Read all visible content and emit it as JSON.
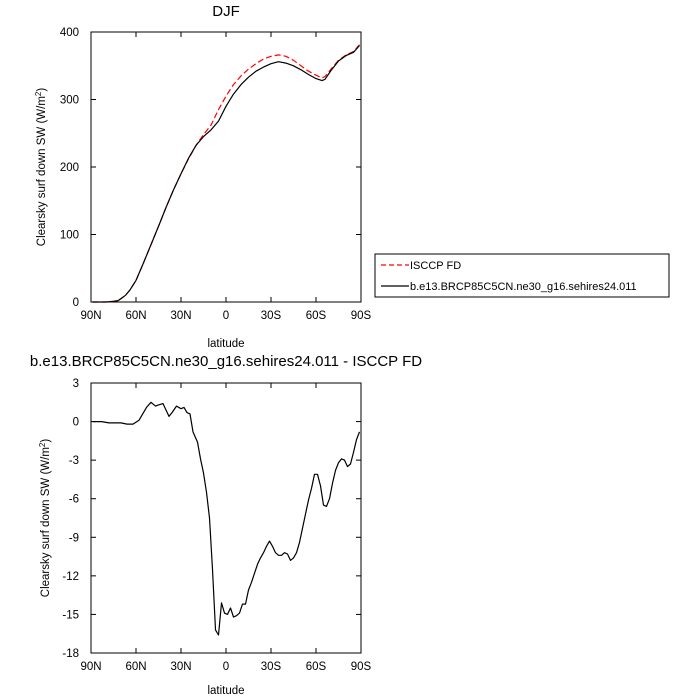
{
  "chart_data": [
    {
      "type": "line",
      "title": "DJF",
      "xlabel": "latitude",
      "ylabel": "Clearsky surf down SW (W/m",
      "ylabel_sup": "2",
      "ylabel_close": ")",
      "xlim": [
        90,
        -90
      ],
      "ylim": [
        0,
        400
      ],
      "x_ticks": [
        {
          "value": 90,
          "label": "90N"
        },
        {
          "value": 60,
          "label": "60N"
        },
        {
          "value": 30,
          "label": "30N"
        },
        {
          "value": 0,
          "label": "0"
        },
        {
          "value": -30,
          "label": "30S"
        },
        {
          "value": -60,
          "label": "60S"
        },
        {
          "value": -90,
          "label": "90S"
        }
      ],
      "y_ticks": [
        {
          "value": 0,
          "label": "0"
        },
        {
          "value": 100,
          "label": "100"
        },
        {
          "value": 200,
          "label": "200"
        },
        {
          "value": 300,
          "label": "300"
        },
        {
          "value": 400,
          "label": "400"
        }
      ],
      "legend": "right",
      "series": [
        {
          "name": "ISCCP FD",
          "color": "#ff0000",
          "dash": "dashed",
          "x": [
            89,
            80,
            75,
            72,
            70,
            67,
            64,
            60,
            55,
            50,
            45,
            40,
            35,
            30,
            25,
            20,
            15,
            10,
            5,
            0,
            -5,
            -10,
            -15,
            -20,
            -25,
            -30,
            -35,
            -40,
            -45,
            -50,
            -55,
            -60,
            -64,
            -66,
            -70,
            -75,
            -80,
            -85,
            -89
          ],
          "y": [
            0,
            0,
            1,
            2,
            5,
            10,
            18,
            32,
            58,
            85,
            112,
            140,
            166,
            190,
            212,
            232,
            248,
            262,
            285,
            305,
            322,
            335,
            345,
            353,
            360,
            364,
            366,
            364,
            358,
            350,
            342,
            336,
            332,
            334,
            345,
            358,
            366,
            371,
            381
          ]
        },
        {
          "name": "b.e13.BRCP85C5CN.ne30_g16.sehires24.011",
          "color": "#000000",
          "dash": "solid",
          "x": [
            89,
            80,
            75,
            72,
            70,
            67,
            64,
            60,
            55,
            50,
            45,
            40,
            35,
            30,
            25,
            20,
            15,
            10,
            5,
            0,
            -5,
            -10,
            -15,
            -20,
            -25,
            -30,
            -35,
            -40,
            -45,
            -50,
            -55,
            -60,
            -64,
            -66,
            -70,
            -75,
            -80,
            -85,
            -89
          ],
          "y": [
            0,
            0,
            1,
            2,
            5,
            10,
            18,
            32,
            58,
            85,
            112,
            140,
            166,
            190,
            213,
            232,
            245,
            255,
            268,
            290,
            308,
            322,
            333,
            342,
            348,
            353,
            356,
            354,
            350,
            344,
            337,
            331,
            328,
            330,
            343,
            357,
            365,
            370,
            380
          ]
        }
      ]
    },
    {
      "type": "line",
      "title": "b.e13.BRCP85C5CN.ne30_g16.sehires24.011 - ISCCP FD",
      "xlabel": "latitude",
      "ylabel": "Clearsky surf down SW (W/m",
      "ylabel_sup": "2",
      "ylabel_close": ")",
      "xlim": [
        90,
        -90
      ],
      "ylim": [
        -18,
        3
      ],
      "x_ticks": [
        {
          "value": 90,
          "label": "90N"
        },
        {
          "value": 60,
          "label": "60N"
        },
        {
          "value": 30,
          "label": "30N"
        },
        {
          "value": 0,
          "label": "0"
        },
        {
          "value": -30,
          "label": "30S"
        },
        {
          "value": -60,
          "label": "60S"
        },
        {
          "value": -90,
          "label": "90S"
        }
      ],
      "y_ticks": [
        {
          "value": 3,
          "label": "3"
        },
        {
          "value": 0,
          "label": "0"
        },
        {
          "value": -3,
          "label": "-3"
        },
        {
          "value": -6,
          "label": "-6"
        },
        {
          "value": -9,
          "label": "-9"
        },
        {
          "value": -12,
          "label": "-12"
        },
        {
          "value": -15,
          "label": "-15"
        },
        {
          "value": -18,
          "label": "-18"
        }
      ],
      "series": [
        {
          "name": "",
          "color": "#000000",
          "dash": "solid",
          "x": [
            89,
            83,
            78,
            75,
            72,
            70,
            66,
            62,
            58,
            55,
            53,
            50,
            47,
            45,
            42,
            38,
            36,
            33,
            30,
            28,
            26,
            24,
            22,
            19,
            17,
            15,
            13,
            11,
            9,
            7,
            5,
            3,
            1,
            -1,
            -3,
            -5,
            -7,
            -9,
            -11,
            -13,
            -15,
            -17,
            -19,
            -21,
            -23,
            -25,
            -27,
            -29,
            -31,
            -33,
            -35,
            -37,
            -39,
            -41,
            -43,
            -45,
            -47,
            -49,
            -51,
            -53,
            -55,
            -57,
            -59,
            -61,
            -63,
            -65,
            -67,
            -69,
            -71,
            -73,
            -75,
            -77,
            -79,
            -81,
            -83,
            -85,
            -87,
            -89
          ],
          "y": [
            0,
            0,
            -0.1,
            -0.1,
            -0.1,
            -0.1,
            -0.2,
            -0.2,
            0.1,
            0.7,
            1.1,
            1.5,
            1.2,
            1.3,
            1.4,
            0.4,
            0.7,
            1.2,
            1.0,
            1.1,
            0.7,
            0.6,
            -0.8,
            -1.6,
            -2.9,
            -4.0,
            -5.5,
            -7.5,
            -11.5,
            -16.2,
            -16.6,
            -14.1,
            -14.9,
            -15.0,
            -14.5,
            -15.2,
            -15.1,
            -14.9,
            -14.2,
            -14.2,
            -13.1,
            -12.5,
            -11.8,
            -11.1,
            -10.6,
            -10.2,
            -9.7,
            -9.3,
            -9.7,
            -10.2,
            -10.4,
            -10.4,
            -10.2,
            -10.3,
            -10.8,
            -10.6,
            -10.2,
            -9.4,
            -8.3,
            -7.2,
            -6.1,
            -5.2,
            -4.1,
            -4.1,
            -5.0,
            -6.5,
            -6.6,
            -6.0,
            -4.8,
            -3.8,
            -3.2,
            -2.9,
            -3.0,
            -3.5,
            -3.3,
            -2.4,
            -1.4,
            -0.8
          ]
        }
      ]
    }
  ]
}
